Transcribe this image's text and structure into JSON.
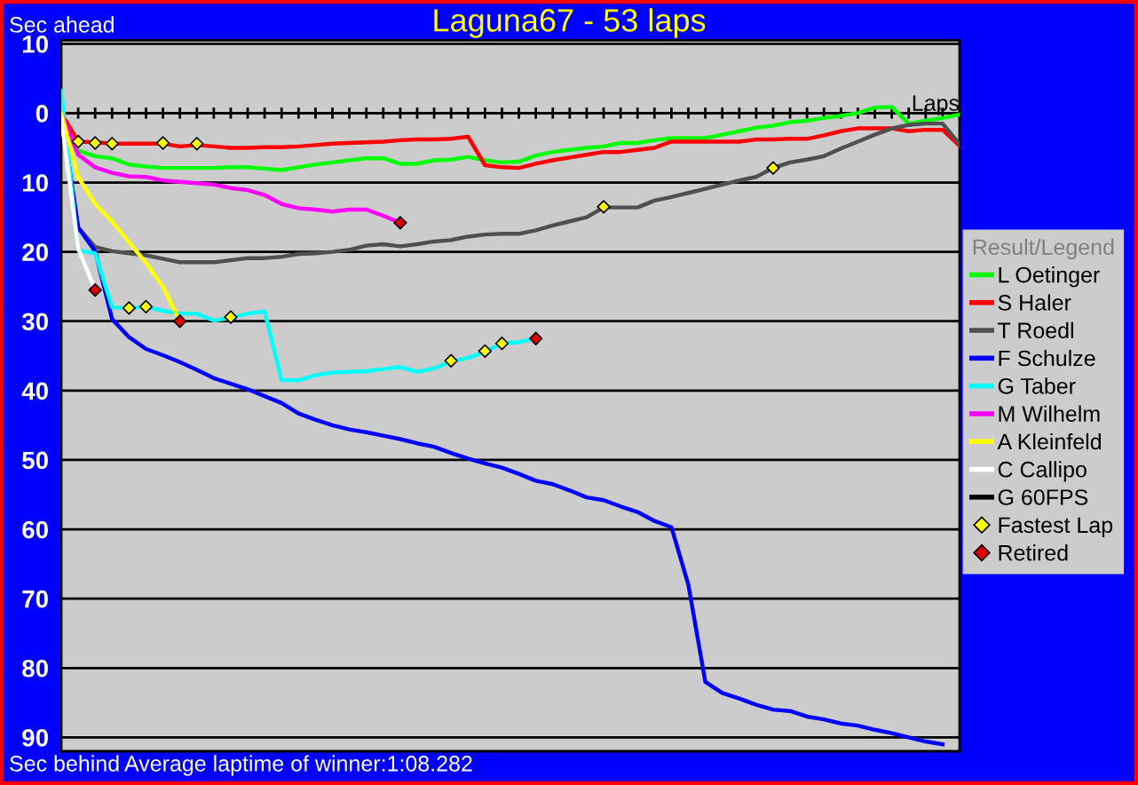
{
  "chart_data": {
    "type": "line",
    "title": "Laguna67 - 53 laps",
    "xlabel": "Laps",
    "ylabel": "Sec ahead",
    "annotations": [
      "Sec behind",
      "Average laptime of winner:1:08.282"
    ],
    "legend_title": "Result/Legend",
    "legend": "right",
    "grid": "y",
    "tick_labels": "y",
    "categories": [
      null,
      null,
      null,
      null,
      null,
      null,
      null,
      null,
      null,
      null,
      null,
      null,
      null,
      null,
      null,
      null,
      null,
      null,
      null,
      null,
      null,
      null,
      null,
      null,
      null,
      null,
      null,
      null,
      null,
      null,
      null,
      null,
      null,
      null,
      null,
      null,
      null,
      null,
      null,
      null,
      null,
      null,
      null,
      null,
      null,
      null,
      null,
      null,
      null,
      null,
      null,
      null,
      null,
      null
    ],
    "ylim": [
      92,
      -10.5
    ],
    "yticks": [
      {
        "value": -10,
        "label": "10"
      },
      0,
      10,
      20,
      30,
      40,
      50,
      60,
      70,
      80,
      90
    ],
    "series": [
      {
        "name": "L Oetinger",
        "color": "#00ff00",
        "values": [
          0,
          5.4,
          6.2,
          6.5,
          7.4,
          7.7,
          7.9,
          7.9,
          7.9,
          7.9,
          7.8,
          7.8,
          8.0,
          8.2,
          7.8,
          7.4,
          7.1,
          6.8,
          6.5,
          6.5,
          7.3,
          7.3,
          6.8,
          6.7,
          6.3,
          6.8,
          7.1,
          7.0,
          6.1,
          5.6,
          5.3,
          5.0,
          4.8,
          4.3,
          4.3,
          3.9,
          3.6,
          3.6,
          3.6,
          3.1,
          2.6,
          2.1,
          1.8,
          1.3,
          1.1,
          0.7,
          0.4,
          0,
          -0.8,
          -0.9,
          1.5,
          1.1,
          0.7,
          0.2
        ]
      },
      {
        "name": "S Haler",
        "color": "#ff0000",
        "values": [
          0,
          4.1,
          4.2,
          4.4,
          4.4,
          4.4,
          4.4,
          4.8,
          4.6,
          4.8,
          5.0,
          5.0,
          4.9,
          4.9,
          4.8,
          4.6,
          4.4,
          4.3,
          4.2,
          4.1,
          3.9,
          3.8,
          3.8,
          3.7,
          3.4,
          7.5,
          7.8,
          7.9,
          7.3,
          6.8,
          6.4,
          6.0,
          5.6,
          5.6,
          5.3,
          5.0,
          4.1,
          4.1,
          4.1,
          4.1,
          4.1,
          3.8,
          3.8,
          3.7,
          3.7,
          3.2,
          2.6,
          2.2,
          2.2,
          2.2,
          2.6,
          2.4,
          2.4,
          4.7
        ]
      },
      {
        "name": "T Roedl",
        "color": "#505050",
        "values": [
          0,
          16.5,
          19.3,
          19.9,
          20.2,
          20.5,
          21.0,
          21.5,
          21.5,
          21.5,
          21.2,
          20.9,
          20.9,
          20.7,
          20.3,
          20.2,
          20.0,
          19.7,
          19.1,
          18.9,
          19.2,
          18.9,
          18.5,
          18.3,
          17.8,
          17.5,
          17.4,
          17.4,
          16.9,
          16.2,
          15.6,
          15.0,
          13.6,
          13.6,
          13.6,
          12.6,
          12.1,
          11.5,
          10.9,
          10.3,
          9.7,
          9.2,
          7.9,
          7.1,
          6.7,
          6.2,
          5.1,
          4.1,
          3.1,
          2.2,
          1.7,
          1.5,
          1.5,
          4.5
        ]
      },
      {
        "name": "F Schulze",
        "color": "#0000ff",
        "values": [
          0,
          16.5,
          19.9,
          29.7,
          32.3,
          34.0,
          34.9,
          35.9,
          37.0,
          38.2,
          39.0,
          39.8,
          40.8,
          41.8,
          43.3,
          44.2,
          45.0,
          45.6,
          46.0,
          46.5,
          47.0,
          47.6,
          48.1,
          49.0,
          49.8,
          50.5,
          51.1,
          52.0,
          53.0,
          53.5,
          54.4,
          55.4,
          55.8,
          56.7,
          57.5,
          58.8,
          59.7,
          68.0,
          82.0,
          83.6,
          84.4,
          85.3,
          86.0,
          86.2,
          87.0,
          87.4,
          88.0,
          88.3,
          88.9,
          89.4,
          90.0,
          90.6,
          91.0,
          null
        ]
      },
      {
        "name": "G Taber",
        "color": "#00ffff",
        "values": [
          -3.2,
          19.8,
          20.2,
          28.0,
          28.1,
          27.9,
          28.5,
          28.9,
          28.9,
          29.9,
          29.5,
          28.9,
          28.6,
          38.5,
          38.5,
          37.8,
          37.4,
          37.3,
          37.2,
          36.9,
          36.6,
          37.3,
          36.8,
          35.8,
          35.3,
          34.4,
          33.2,
          33.0,
          32.5,
          null,
          null,
          null,
          null,
          null,
          null,
          null,
          null,
          null,
          null,
          null,
          null,
          null,
          null,
          null,
          null,
          null,
          null,
          null,
          null,
          null,
          null,
          null,
          null,
          null
        ]
      },
      {
        "name": "M Wilhelm",
        "color": "#ff00ff",
        "values": [
          0,
          6.0,
          7.8,
          8.6,
          9.1,
          9.2,
          9.7,
          9.9,
          10.1,
          10.3,
          10.8,
          11.1,
          11.8,
          13.1,
          13.7,
          13.9,
          14.2,
          13.9,
          13.9,
          14.8,
          15.8,
          null,
          null,
          null,
          null,
          null,
          null,
          null,
          null,
          null,
          null,
          null,
          null,
          null,
          null,
          null,
          null,
          null,
          null,
          null,
          null,
          null,
          null,
          null,
          null,
          null,
          null,
          null,
          null,
          null,
          null,
          null,
          null,
          null
        ]
      },
      {
        "name": "A Kleinfeld",
        "color": "#ffff00",
        "values": [
          0,
          9.2,
          13.1,
          15.6,
          18.6,
          21.6,
          25.0,
          30.0,
          null,
          null,
          null,
          null,
          null,
          null,
          null,
          null,
          null,
          null,
          null,
          null,
          null,
          null,
          null,
          null,
          null,
          null,
          null,
          null,
          null,
          null,
          null,
          null,
          null,
          null,
          null,
          null,
          null,
          null,
          null,
          null,
          null,
          null,
          null,
          null,
          null,
          null,
          null,
          null,
          null,
          null,
          null,
          null,
          null,
          null
        ]
      },
      {
        "name": "C Callipo",
        "color": "#ffffff",
        "values": [
          0.7,
          19.5,
          25.5,
          null,
          null,
          null,
          null,
          null,
          null,
          null,
          null,
          null,
          null,
          null,
          null,
          null,
          null,
          null,
          null,
          null,
          null,
          null,
          null,
          null,
          null,
          null,
          null,
          null,
          null,
          null,
          null,
          null,
          null,
          null,
          null,
          null,
          null,
          null,
          null,
          null,
          null,
          null,
          null,
          null,
          null,
          null,
          null,
          null,
          null,
          null,
          null,
          null,
          null,
          null
        ]
      },
      {
        "name": "G 60FPS",
        "color": "#000000",
        "values": [
          null,
          null,
          null,
          null,
          null,
          null,
          null,
          null,
          null,
          null,
          null,
          null,
          null,
          null,
          null,
          null,
          null,
          null,
          null,
          null,
          null,
          null,
          null,
          null,
          null,
          null,
          null,
          null,
          null,
          null,
          null,
          null,
          null,
          null,
          null,
          null,
          null,
          null,
          null,
          null,
          null,
          null,
          null,
          null,
          null,
          null,
          null,
          null,
          null,
          null,
          null,
          null,
          null,
          null
        ]
      },
      {
        "name": "Fastest Lap",
        "type": "scatter",
        "marker": "diamond",
        "color": "#ffff00",
        "values": [
          null,
          4.1,
          4.3,
          4.4,
          28.1,
          27.9,
          4.3,
          null,
          4.4,
          null,
          29.4,
          null,
          null,
          null,
          null,
          null,
          null,
          null,
          null,
          null,
          null,
          null,
          null,
          35.7,
          null,
          34.3,
          33.2,
          null,
          null,
          null,
          null,
          null,
          13.5,
          null,
          null,
          null,
          null,
          null,
          null,
          null,
          null,
          null,
          7.9,
          null,
          null,
          null,
          null,
          null,
          null,
          null,
          null,
          null,
          null,
          null
        ]
      },
      {
        "name": "Retired",
        "type": "scatter",
        "marker": "diamond",
        "color": "#e00000",
        "values": [
          null,
          null,
          25.5,
          null,
          null,
          null,
          null,
          30.0,
          null,
          null,
          null,
          null,
          null,
          null,
          null,
          null,
          null,
          null,
          null,
          null,
          15.8,
          null,
          null,
          null,
          null,
          null,
          null,
          null,
          32.5,
          null,
          null,
          null,
          null,
          null,
          null,
          null,
          null,
          null,
          null,
          null,
          null,
          null,
          null,
          null,
          null,
          null,
          null,
          null,
          null,
          null,
          null,
          null,
          null,
          null
        ]
      }
    ]
  }
}
